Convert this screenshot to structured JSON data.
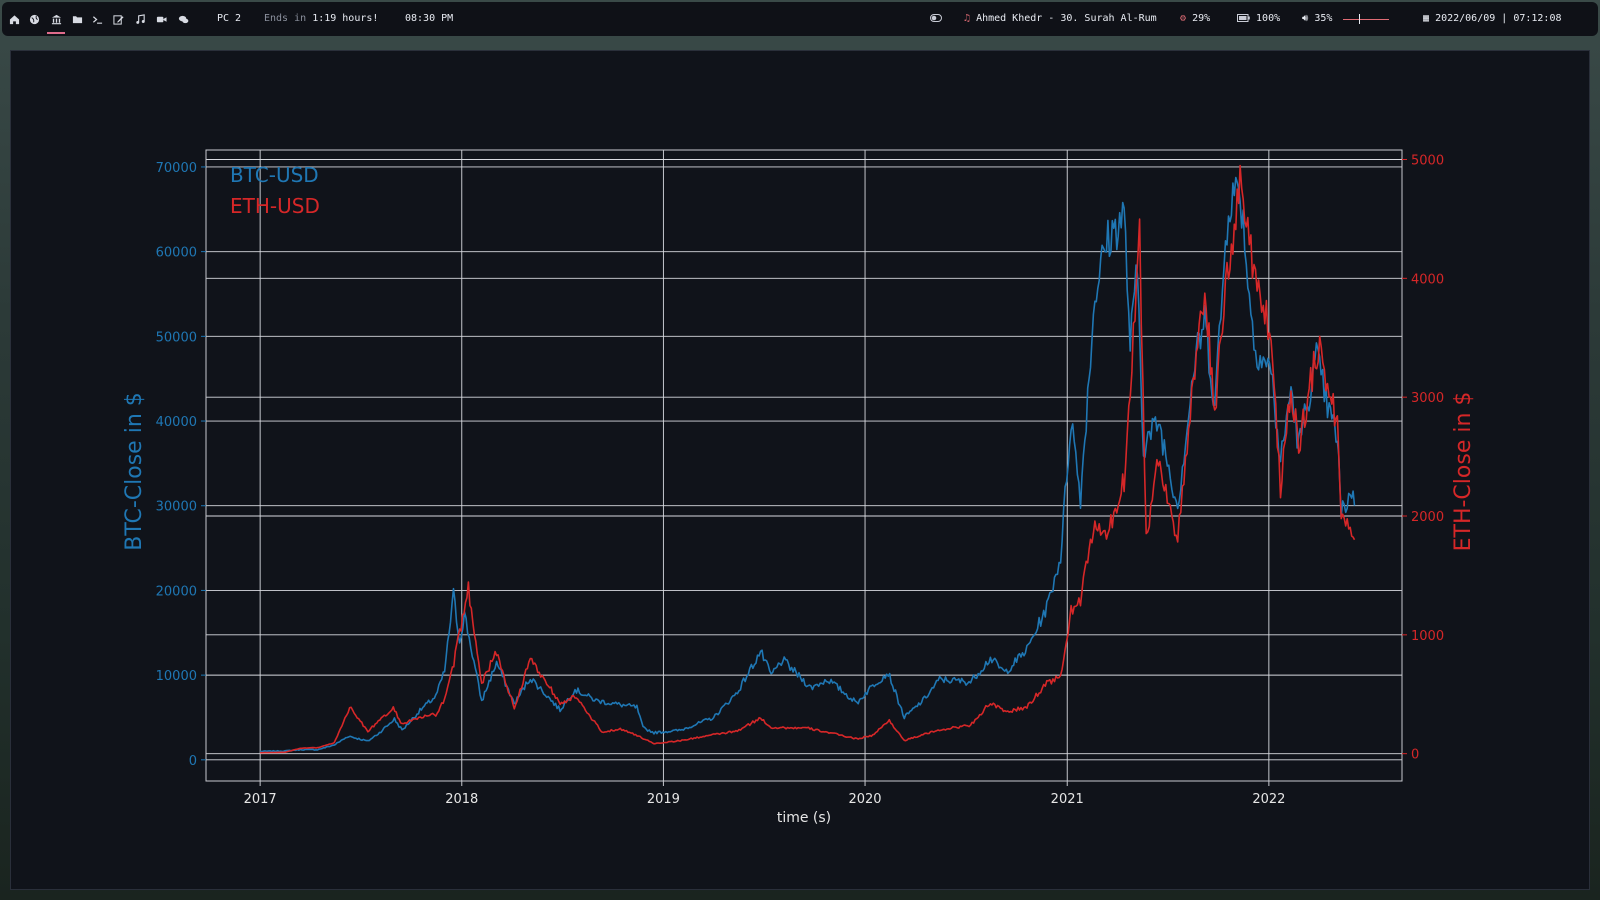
{
  "topbar": {
    "workspaces": [
      {
        "icon": "home-icon"
      },
      {
        "icon": "globe-icon"
      },
      {
        "icon": "bank-icon",
        "active": true
      },
      {
        "icon": "folder-icon"
      },
      {
        "icon": "terminal-icon"
      },
      {
        "icon": "edit-icon"
      },
      {
        "icon": "music-icon"
      },
      {
        "icon": "video-icon"
      },
      {
        "icon": "chat-icon"
      }
    ],
    "pc_label": "PC 2",
    "ends_prefix": "Ends in",
    "ends_value": "1:19 hours!",
    "clock_time": "08:30 PM",
    "now_playing": "Ahmed Khedr - 30. Surah Al-Rum",
    "cpu": "29%",
    "battery": "100%",
    "volume": "35%",
    "volume_level": 0.35,
    "datetime": "2022/06/09 | 07:12:08",
    "accent_color": "#e06c75"
  },
  "chart_data": {
    "type": "line",
    "title": "",
    "xlabel": "time (s)",
    "ylabel_left": "BTC-Close in $",
    "ylabel_right": "ETH-Close in $",
    "x_ticks": [
      "2017",
      "2018",
      "2019",
      "2020",
      "2021",
      "2022"
    ],
    "y_left_ticks": [
      0,
      10000,
      20000,
      30000,
      40000,
      50000,
      60000,
      70000
    ],
    "y_right_ticks": [
      0,
      1000,
      2000,
      3000,
      4000,
      5000
    ],
    "xlim": [
      "2016-09-25",
      "2022-08-30"
    ],
    "ylim_left": [
      -2500,
      72000
    ],
    "ylim_right": [
      -230,
      5080
    ],
    "grid": true,
    "legend_location": "top-left",
    "series": [
      {
        "name": "BTC-USD",
        "axis": "left",
        "color": "#1f77b4",
        "points": [
          [
            "2017-01-01",
            1000
          ],
          [
            "2017-02-15",
            1050
          ],
          [
            "2017-03-15",
            1200
          ],
          [
            "2017-04-15",
            1200
          ],
          [
            "2017-05-15",
            1750
          ],
          [
            "2017-06-10",
            2800
          ],
          [
            "2017-07-15",
            2200
          ],
          [
            "2017-08-05",
            3200
          ],
          [
            "2017-09-01",
            4800
          ],
          [
            "2017-09-15",
            3500
          ],
          [
            "2017-10-20",
            6000
          ],
          [
            "2017-11-15",
            7500
          ],
          [
            "2017-12-01",
            10500
          ],
          [
            "2017-12-17",
            19500
          ],
          [
            "2017-12-28",
            14000
          ],
          [
            "2018-01-06",
            17200
          ],
          [
            "2018-02-06",
            6900
          ],
          [
            "2018-03-05",
            11500
          ],
          [
            "2018-04-06",
            6600
          ],
          [
            "2018-05-05",
            9700
          ],
          [
            "2018-06-28",
            5900
          ],
          [
            "2018-07-25",
            8300
          ],
          [
            "2018-09-01",
            7000
          ],
          [
            "2018-10-15",
            6500
          ],
          [
            "2018-11-14",
            6200
          ],
          [
            "2018-11-25",
            3800
          ],
          [
            "2018-12-15",
            3200
          ],
          [
            "2019-02-01",
            3500
          ],
          [
            "2019-04-02",
            5000
          ],
          [
            "2019-05-15",
            8000
          ],
          [
            "2019-06-26",
            12800
          ],
          [
            "2019-07-15",
            10000
          ],
          [
            "2019-08-05",
            11800
          ],
          [
            "2019-09-25",
            8500
          ],
          [
            "2019-10-26",
            9500
          ],
          [
            "2019-12-17",
            6700
          ],
          [
            "2020-01-15",
            8800
          ],
          [
            "2020-02-12",
            10300
          ],
          [
            "2020-03-12",
            5000
          ],
          [
            "2020-04-15",
            7000
          ],
          [
            "2020-05-15",
            9500
          ],
          [
            "2020-07-10",
            9200
          ],
          [
            "2020-08-15",
            12000
          ],
          [
            "2020-09-10",
            10300
          ],
          [
            "2020-10-20",
            13000
          ],
          [
            "2020-11-25",
            18000
          ],
          [
            "2020-12-20",
            24000
          ],
          [
            "2021-01-08",
            40500
          ],
          [
            "2021-01-25",
            31000
          ],
          [
            "2021-02-20",
            55000
          ],
          [
            "2021-03-13",
            61000
          ],
          [
            "2021-04-14",
            64500
          ],
          [
            "2021-04-25",
            49000
          ],
          [
            "2021-05-08",
            58000
          ],
          [
            "2021-05-19",
            37000
          ],
          [
            "2021-06-15",
            40000
          ],
          [
            "2021-07-20",
            30000
          ],
          [
            "2021-08-20",
            47000
          ],
          [
            "2021-09-07",
            52000
          ],
          [
            "2021-09-25",
            42000
          ],
          [
            "2021-10-20",
            66000
          ],
          [
            "2021-11-10",
            67500
          ],
          [
            "2021-12-05",
            49000
          ],
          [
            "2022-01-05",
            46000
          ],
          [
            "2022-01-22",
            35000
          ],
          [
            "2022-02-10",
            44000
          ],
          [
            "2022-02-24",
            37000
          ],
          [
            "2022-03-28",
            47500
          ],
          [
            "2022-04-20",
            41000
          ],
          [
            "2022-05-05",
            38000
          ],
          [
            "2022-05-12",
            29000
          ],
          [
            "2022-05-31",
            31800
          ],
          [
            "2022-06-05",
            30000
          ]
        ]
      },
      {
        "name": "ETH-USD",
        "axis": "right",
        "color": "#d62728",
        "points": [
          [
            "2017-01-01",
            8
          ],
          [
            "2017-02-15",
            12
          ],
          [
            "2017-03-15",
            45
          ],
          [
            "2017-04-15",
            50
          ],
          [
            "2017-05-15",
            90
          ],
          [
            "2017-06-12",
            390
          ],
          [
            "2017-07-15",
            190
          ],
          [
            "2017-08-30",
            380
          ],
          [
            "2017-09-15",
            250
          ],
          [
            "2017-10-15",
            300
          ],
          [
            "2017-11-15",
            330
          ],
          [
            "2017-12-01",
            450
          ],
          [
            "2017-12-15",
            700
          ],
          [
            "2018-01-13",
            1390
          ],
          [
            "2018-02-06",
            600
          ],
          [
            "2018-03-05",
            850
          ],
          [
            "2018-04-06",
            380
          ],
          [
            "2018-05-05",
            800
          ],
          [
            "2018-06-28",
            430
          ],
          [
            "2018-07-25",
            480
          ],
          [
            "2018-09-12",
            180
          ],
          [
            "2018-10-15",
            210
          ],
          [
            "2018-11-20",
            140
          ],
          [
            "2018-12-15",
            85
          ],
          [
            "2019-02-01",
            110
          ],
          [
            "2019-04-02",
            160
          ],
          [
            "2019-05-15",
            190
          ],
          [
            "2019-06-26",
            300
          ],
          [
            "2019-07-15",
            220
          ],
          [
            "2019-09-18",
            215
          ],
          [
            "2019-10-25",
            180
          ],
          [
            "2019-12-17",
            125
          ],
          [
            "2020-01-15",
            155
          ],
          [
            "2020-02-14",
            280
          ],
          [
            "2020-03-12",
            110
          ],
          [
            "2020-04-15",
            160
          ],
          [
            "2020-05-15",
            200
          ],
          [
            "2020-07-10",
            240
          ],
          [
            "2020-08-15",
            430
          ],
          [
            "2020-09-10",
            350
          ],
          [
            "2020-10-20",
            390
          ],
          [
            "2020-11-25",
            600
          ],
          [
            "2020-12-20",
            640
          ],
          [
            "2021-01-08",
            1200
          ],
          [
            "2021-01-25",
            1300
          ],
          [
            "2021-02-20",
            1950
          ],
          [
            "2021-03-13",
            1800
          ],
          [
            "2021-04-14",
            2300
          ],
          [
            "2021-05-12",
            4380
          ],
          [
            "2021-05-24",
            1800
          ],
          [
            "2021-06-15",
            2500
          ],
          [
            "2021-07-20",
            1800
          ],
          [
            "2021-08-20",
            3200
          ],
          [
            "2021-09-07",
            3900
          ],
          [
            "2021-09-25",
            2900
          ],
          [
            "2021-10-20",
            4100
          ],
          [
            "2021-11-10",
            4800
          ],
          [
            "2021-12-05",
            4100
          ],
          [
            "2022-01-05",
            3500
          ],
          [
            "2022-01-22",
            2250
          ],
          [
            "2022-02-10",
            3100
          ],
          [
            "2022-02-24",
            2600
          ],
          [
            "2022-04-03",
            3500
          ],
          [
            "2022-04-20",
            3000
          ],
          [
            "2022-05-05",
            2800
          ],
          [
            "2022-05-12",
            2000
          ],
          [
            "2022-05-31",
            1900
          ],
          [
            "2022-06-05",
            1800
          ]
        ]
      }
    ]
  }
}
